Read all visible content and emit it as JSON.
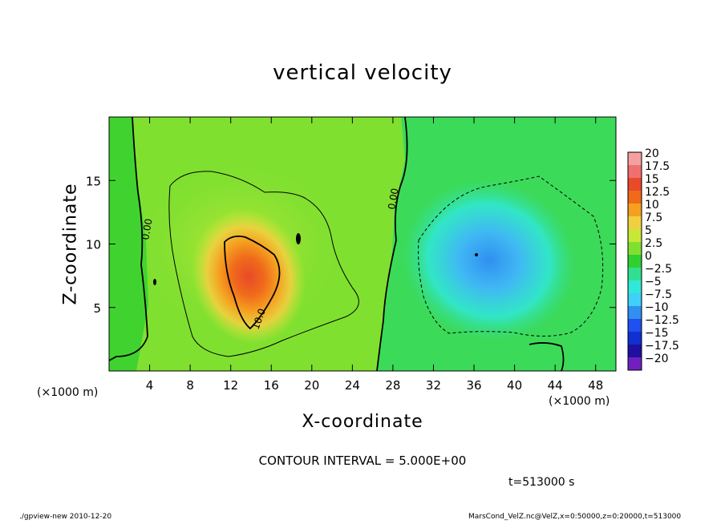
{
  "chart_data": {
    "type": "heatmap",
    "title": "vertical velocity",
    "xlabel": "X-coordinate",
    "ylabel": "Z-coordinate",
    "x_unit_left": "(×1000 m)",
    "x_unit_right": "(×1000 m)",
    "xlim": [
      0,
      50
    ],
    "ylim": [
      0,
      20
    ],
    "xticks": [
      4,
      8,
      12,
      16,
      20,
      24,
      28,
      32,
      36,
      40,
      44,
      48
    ],
    "yticks": [
      5,
      10,
      15
    ],
    "colorbar": {
      "levels": [
        "20",
        "17.5",
        "15",
        "12.5",
        "10",
        "7.5",
        "5",
        "2.5",
        "0",
        "−2.5",
        "−5",
        "−7.5",
        "−10",
        "−12.5",
        "−15",
        "−17.5",
        "−20"
      ],
      "colors": [
        "#f4a0a0",
        "#f07070",
        "#e84a2a",
        "#f06a1a",
        "#f5a020",
        "#f0d040",
        "#c8e838",
        "#80e030",
        "#30d030",
        "#30e090",
        "#30e8d8",
        "#40d0f8",
        "#3090f0",
        "#2050f0",
        "#1030d0",
        "#2010a0",
        "#7020c0"
      ]
    },
    "features": [
      {
        "kind": "updraft",
        "x": 13.5,
        "z": 7.5,
        "peak": 13
      },
      {
        "kind": "downdraft",
        "x": 36.5,
        "z": 9.0,
        "peak": -8
      }
    ],
    "contour_labels": [
      "0.00",
      "0.00",
      "10.0"
    ],
    "contour_interval": "CONTOUR INTERVAL = 5.000E+00",
    "time": "t=513000 s",
    "footer_left": "./gpview-new  2010-12-20",
    "footer_right": "MarsCond_VelZ.nc@VelZ,x=0:50000,z=0:20000,t=513000"
  }
}
